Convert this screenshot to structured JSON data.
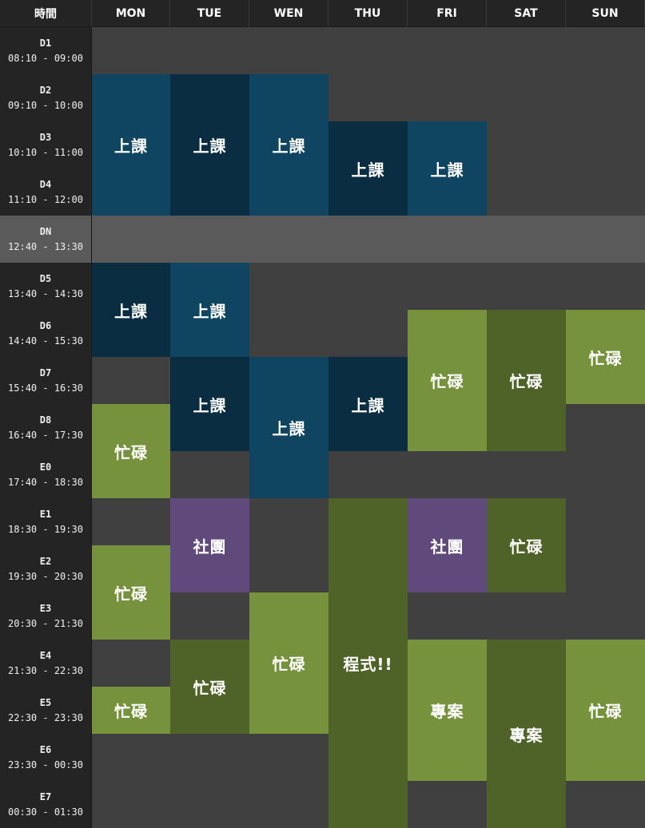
{
  "header": {
    "time": "時間",
    "days": [
      "MON",
      "TUE",
      "WEN",
      "THU",
      "FRI",
      "SAT",
      "SUN"
    ]
  },
  "periods": [
    {
      "name": "D1",
      "time": "08:10 - 09:00"
    },
    {
      "name": "D2",
      "time": "09:10 - 10:00"
    },
    {
      "name": "D3",
      "time": "10:10 - 11:00"
    },
    {
      "name": "D4",
      "time": "11:10 - 12:00"
    },
    {
      "name": "DN",
      "time": "12:40 - 13:30"
    },
    {
      "name": "D5",
      "time": "13:40 - 14:30"
    },
    {
      "name": "D6",
      "time": "14:40 - 15:30"
    },
    {
      "name": "D7",
      "time": "15:40 - 16:30"
    },
    {
      "name": "D8",
      "time": "16:40 - 17:30"
    },
    {
      "name": "E0",
      "time": "17:40 - 18:30"
    },
    {
      "name": "E1",
      "time": "18:30 - 19:30"
    },
    {
      "name": "E2",
      "time": "19:30 - 20:30"
    },
    {
      "name": "E3",
      "time": "20:30 - 21:30"
    },
    {
      "name": "E4",
      "time": "21:30 - 22:30"
    },
    {
      "name": "E5",
      "time": "22:30 - 23:30"
    },
    {
      "name": "E6",
      "time": "23:30 - 00:30"
    },
    {
      "name": "E7",
      "time": "00:30 - 01:30"
    }
  ],
  "colors": {
    "class_light": "#0f4560",
    "class_dark": "#0b2d42",
    "busy_light": "#76923c",
    "busy_dark": "#4f6228",
    "club": "#604a7b",
    "lunch": "#5a5a5a",
    "empty": "#404040"
  },
  "events": [
    {
      "day": 0,
      "start": 1,
      "span": 3,
      "label": "上課",
      "color": "#0f4560"
    },
    {
      "day": 1,
      "start": 1,
      "span": 3,
      "label": "上課",
      "color": "#0b2d42"
    },
    {
      "day": 2,
      "start": 1,
      "span": 3,
      "label": "上課",
      "color": "#0f4560"
    },
    {
      "day": 3,
      "start": 2,
      "span": 2,
      "label": "上課",
      "color": "#0b2d42"
    },
    {
      "day": 4,
      "start": 2,
      "span": 2,
      "label": "上課",
      "color": "#0f4560"
    },
    {
      "day": 0,
      "start": 5,
      "span": 2,
      "label": "上課",
      "color": "#0b2d42"
    },
    {
      "day": 1,
      "start": 5,
      "span": 2,
      "label": "上課",
      "color": "#0f4560"
    },
    {
      "day": 4,
      "start": 6,
      "span": 3,
      "label": "忙碌",
      "color": "#76923c"
    },
    {
      "day": 5,
      "start": 6,
      "span": 3,
      "label": "忙碌",
      "color": "#4f6228"
    },
    {
      "day": 6,
      "start": 6,
      "span": 2,
      "label": "忙碌",
      "color": "#76923c"
    },
    {
      "day": 1,
      "start": 7,
      "span": 2,
      "label": "上課",
      "color": "#0b2d42"
    },
    {
      "day": 2,
      "start": 7,
      "span": 3,
      "label": "上課",
      "color": "#0f4560"
    },
    {
      "day": 3,
      "start": 7,
      "span": 2,
      "label": "上課",
      "color": "#0b2d42"
    },
    {
      "day": 0,
      "start": 8,
      "span": 2,
      "label": "忙碌",
      "color": "#76923c"
    },
    {
      "day": 1,
      "start": 10,
      "span": 2,
      "label": "社團",
      "color": "#604a7b"
    },
    {
      "day": 3,
      "start": 10,
      "span": 7,
      "label": "程式!!",
      "color": "#4f6228"
    },
    {
      "day": 4,
      "start": 10,
      "span": 2,
      "label": "社團",
      "color": "#604a7b"
    },
    {
      "day": 5,
      "start": 10,
      "span": 2,
      "label": "忙碌",
      "color": "#4f6228"
    },
    {
      "day": 0,
      "start": 11,
      "span": 2,
      "label": "忙碌",
      "color": "#76923c"
    },
    {
      "day": 2,
      "start": 12,
      "span": 3,
      "label": "忙碌",
      "color": "#76923c"
    },
    {
      "day": 1,
      "start": 13,
      "span": 2,
      "label": "忙碌",
      "color": "#4f6228"
    },
    {
      "day": 4,
      "start": 13,
      "span": 3,
      "label": "專案",
      "color": "#76923c"
    },
    {
      "day": 5,
      "start": 13,
      "span": 4,
      "label": "專案",
      "color": "#4f6228"
    },
    {
      "day": 6,
      "start": 13,
      "span": 3,
      "label": "忙碌",
      "color": "#76923c"
    },
    {
      "day": 0,
      "start": 14,
      "span": 1,
      "label": "忙碌",
      "color": "#76923c"
    }
  ]
}
